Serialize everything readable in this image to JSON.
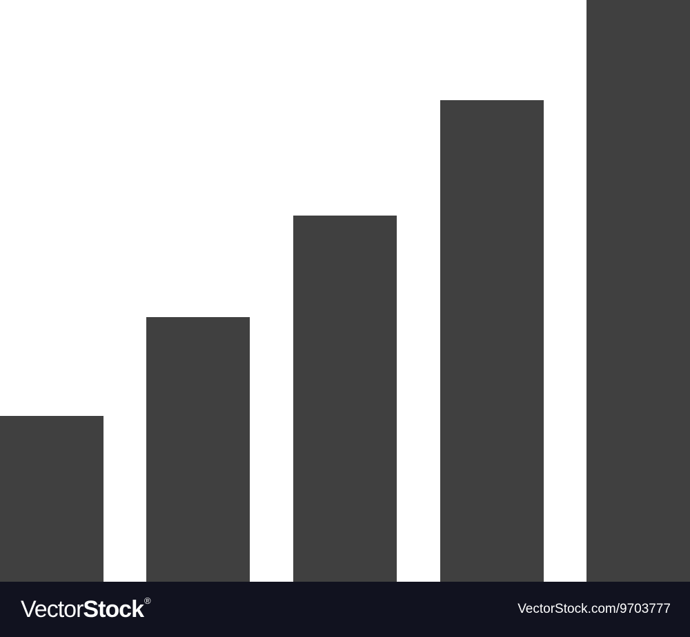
{
  "colors": {
    "background": "#ffffff",
    "bar": "#404040",
    "footer": "#11121f",
    "footer_text": "#ffffff"
  },
  "icon": {
    "name": "bar-chart-growth-icon",
    "bar_levels": [
      0.285,
      0.455,
      0.63,
      0.828,
      1.0
    ]
  },
  "footer": {
    "brand_light": "Vector",
    "brand_bold": "Stock",
    "brand_reg": "®",
    "image_id": "VectorStock.com/9703777"
  }
}
